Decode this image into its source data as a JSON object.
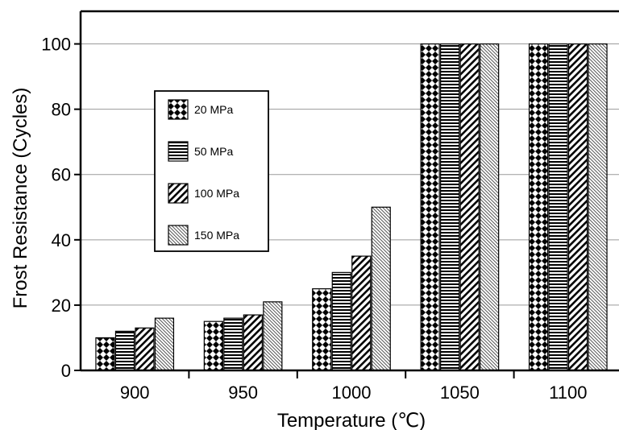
{
  "chart_data": {
    "type": "bar",
    "xlabel": "Temperature (℃)",
    "ylabel": "Frost Resistance (Cycles)",
    "ylim": [
      0,
      110
    ],
    "yticks": [
      0,
      20,
      40,
      60,
      80,
      100
    ],
    "grid": "horizontal",
    "legend_position": "left-middle",
    "categories": [
      "900",
      "950",
      "1000",
      "1050",
      "1100"
    ],
    "series": [
      {
        "name": "20 MPa",
        "pattern": "diamond-checker",
        "values": [
          10,
          15,
          25,
          100,
          100
        ]
      },
      {
        "name": "50 MPa",
        "pattern": "horizontal-lines",
        "values": [
          12,
          16,
          30,
          100,
          100
        ]
      },
      {
        "name": "100 MPa",
        "pattern": "diagonal-lines",
        "values": [
          13,
          17,
          35,
          100,
          100
        ]
      },
      {
        "name": "150 MPa",
        "pattern": "dense-diagonal-hatch",
        "values": [
          16,
          21,
          50,
          100,
          100
        ]
      }
    ]
  }
}
